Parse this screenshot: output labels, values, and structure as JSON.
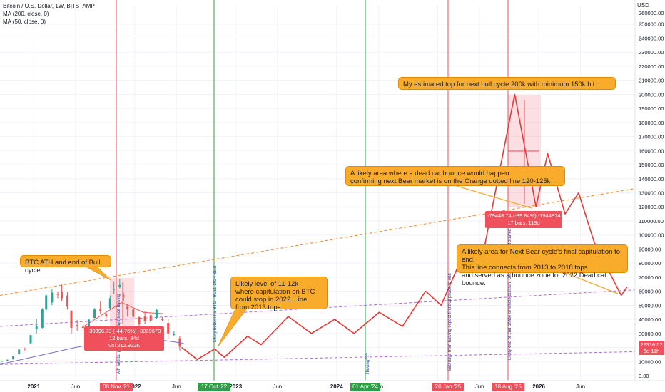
{
  "legend": {
    "title": "Bitcoin / U.S. Dollar, 1W, BITSTAMP",
    "ma200": "MA (200, close, 0)",
    "ma50": "MA (50, close, 0)"
  },
  "currency": "USD",
  "price_axis_labels": [
    "0.00",
    "10000.00",
    "20000.00",
    "30000.00",
    "40000.00",
    "50000.00",
    "60000.00",
    "70000.00",
    "80000.00",
    "90000.00",
    "100000.00",
    "110000.00",
    "120000.00",
    "130000.00",
    "140000.00",
    "150000.00",
    "160000.00",
    "170000.00",
    "180000.00",
    "190000.00",
    "200000.00",
    "210000.00",
    "220000.00",
    "230000.00",
    "240000.00",
    "250000.00"
  ],
  "price_axis_top_label": "260000.00",
  "time_axis_labels": [
    "2021",
    "Jun",
    "2022",
    "Jun",
    "2023",
    "Jun",
    "2024",
    "Jun",
    "2025",
    "Jun",
    "2026",
    "Jun"
  ],
  "current_price": {
    "price": "22316.52",
    "countdown": "5d 11h"
  },
  "date_markers": [
    {
      "label": "08 Nov '21",
      "color": "#f04f5c"
    },
    {
      "label": "17 Oct '22",
      "color": "#2ea043"
    },
    {
      "label": "01 Apr '24",
      "color": "#2ea043"
    },
    {
      "label": "20 Jan '25",
      "color": "#f04f5c"
    },
    {
      "label": "18 Aug '25",
      "color": "#f04f5c"
    }
  ],
  "callouts": {
    "ath": "BTC ATH and end of Bull cycle",
    "bottom": "Likely level of 11-12k\nwhere capitulation on BTC\ncould stop in 2022. Line\nfrom 2013 tops",
    "top": "My estimated top for next bull cycle 200k with minimum 150k hit",
    "deadcat": "A likely area where a dead cat bounce would happen\nconfirming next Bear market is on the Orange dotted line 120-125k",
    "nextbear": "A likely area for Next Bear cycle's final capitulation to end.\nThis line connects from 2013 to 2018 tops\nand served as a bounce zone for 2022 Dead cat bounce."
  },
  "measure_2022": {
    "change": "-30896.73 (-44.76%) -3089673",
    "bars": "12 bars, 84d",
    "volume": "Vol 212.922K"
  },
  "measure_2025": {
    "change": "-79448.74 (-39.84%) -7944874",
    "bars": "17 bars, 119d"
  },
  "vertical_notes": [
    "Likely bottom for BTC - BULL 2024 Start",
    "Halving???",
    "550 days from halving expect first bull phase to end",
    "Likely end of 2nd phase or whole bull run, Depending where it started",
    "Ath and bu peak ... 525 days since halving"
  ],
  "chart_data": {
    "type": "line",
    "ylim": [
      0,
      260000
    ],
    "xlim": [
      "2020-09-01",
      "2026-12-15"
    ],
    "series": [
      {
        "values_kind": "projection",
        "points": [
          [
            "2022-06-20",
            20000
          ],
          [
            "2022-08-15",
            11500
          ],
          [
            "2022-10-17",
            19000
          ],
          [
            "2022-11-21",
            13000
          ],
          [
            "2023-02-13",
            28000
          ],
          [
            "2023-04-03",
            22000
          ],
          [
            "2023-07-10",
            42000
          ],
          [
            "2023-10-02",
            30000
          ],
          [
            "2023-12-25",
            40000
          ],
          [
            "2024-03-04",
            30000
          ],
          [
            "2024-06-03",
            45000
          ],
          [
            "2024-08-26",
            35000
          ],
          [
            "2024-11-18",
            60000
          ],
          [
            "2025-01-13",
            50000
          ],
          [
            "2025-04-07",
            88000
          ],
          [
            "2025-06-02",
            75000
          ],
          [
            "2025-10-06",
            200000
          ],
          [
            "2025-12-22",
            120000
          ],
          [
            "2026-02-02",
            158000
          ],
          [
            "2026-04-06",
            115000
          ],
          [
            "2026-05-25",
            130000
          ],
          [
            "2026-07-20",
            95000
          ],
          [
            "2026-10-26",
            57000
          ],
          [
            "2026-11-16",
            63000
          ]
        ]
      },
      {
        "values_kind": "trendline_orange",
        "points": [
          [
            "2020-09-01",
            57000
          ],
          [
            "2026-12-15",
            133000
          ]
        ]
      },
      {
        "values_kind": "trendline_purple_upper",
        "points": [
          [
            "2020-09-01",
            35000
          ],
          [
            "2026-12-15",
            61000
          ]
        ]
      },
      {
        "values_kind": "trendline_purple_lower",
        "points": [
          [
            "2020-09-01",
            8000
          ],
          [
            "2026-12-15",
            17000
          ]
        ]
      },
      {
        "values_kind": "MA 50",
        "points": [
          [
            "2021-07-01",
            35000
          ],
          [
            "2021-11-15",
            52000
          ],
          [
            "2022-02-01",
            45000
          ],
          [
            "2022-04-15",
            44000
          ]
        ]
      },
      {
        "values_kind": "MA 200",
        "points": [
          [
            "2020-09-01",
            8000
          ],
          [
            "2021-06-01",
            20000
          ],
          [
            "2022-01-01",
            28000
          ],
          [
            "2022-06-27",
            23000
          ]
        ]
      }
    ],
    "candles": [
      [
        "2020-09-07",
        10300,
        10700,
        10000,
        10400
      ],
      [
        "2020-09-28",
        10800,
        11400,
        10600,
        11300
      ],
      [
        "2020-10-19",
        11500,
        13800,
        11400,
        13700
      ],
      [
        "2020-11-09",
        15300,
        18900,
        15000,
        18500
      ],
      [
        "2020-11-30",
        19200,
        19900,
        17600,
        19000
      ],
      [
        "2020-12-21",
        23000,
        29000,
        22500,
        28800
      ],
      [
        "2021-01-11",
        33000,
        40000,
        30000,
        35000
      ],
      [
        "2021-02-01",
        34000,
        48000,
        33500,
        47000
      ],
      [
        "2021-02-15",
        47000,
        58000,
        46000,
        57000
      ],
      [
        "2021-03-08",
        52000,
        61800,
        50000,
        59000
      ],
      [
        "2021-03-29",
        58000,
        59800,
        55000,
        57500
      ],
      [
        "2021-04-12",
        60000,
        64800,
        53000,
        55000
      ],
      [
        "2021-05-03",
        57000,
        59500,
        47000,
        49000
      ],
      [
        "2021-05-17",
        46000,
        46500,
        30000,
        34000
      ],
      [
        "2021-06-07",
        36000,
        39500,
        32000,
        35500
      ],
      [
        "2021-06-28",
        34800,
        36000,
        32800,
        34000
      ],
      [
        "2021-07-19",
        31500,
        40000,
        29500,
        39800
      ],
      [
        "2021-08-09",
        41000,
        48000,
        40800,
        47000
      ],
      [
        "2021-08-30",
        47000,
        52800,
        44000,
        46000
      ],
      [
        "2021-09-20",
        43500,
        44500,
        40500,
        42000
      ],
      [
        "2021-10-04",
        48000,
        57000,
        47000,
        55000
      ],
      [
        "2021-10-18",
        61000,
        67000,
        58000,
        61500
      ],
      [
        "2021-11-08",
        63000,
        68800,
        62000,
        64500
      ],
      [
        "2021-11-22",
        57000,
        59000,
        53000,
        56000
      ],
      [
        "2021-12-06",
        49000,
        51000,
        42000,
        47000
      ],
      [
        "2021-12-27",
        47000,
        48000,
        41000,
        41800
      ],
      [
        "2022-01-17",
        41500,
        42500,
        33000,
        36500
      ],
      [
        "2022-02-07",
        42000,
        45800,
        37000,
        38500
      ],
      [
        "2022-02-28",
        43000,
        45000,
        37500,
        39000
      ],
      [
        "2022-03-21",
        41000,
        47500,
        40500,
        46800
      ],
      [
        "2022-04-11",
        40000,
        41500,
        38500,
        39500
      ],
      [
        "2022-05-02",
        37500,
        40000,
        26000,
        30000
      ],
      [
        "2022-05-23",
        29000,
        31500,
        28000,
        29500
      ],
      [
        "2022-06-13",
        26500,
        28000,
        17600,
        20500
      ]
    ]
  }
}
